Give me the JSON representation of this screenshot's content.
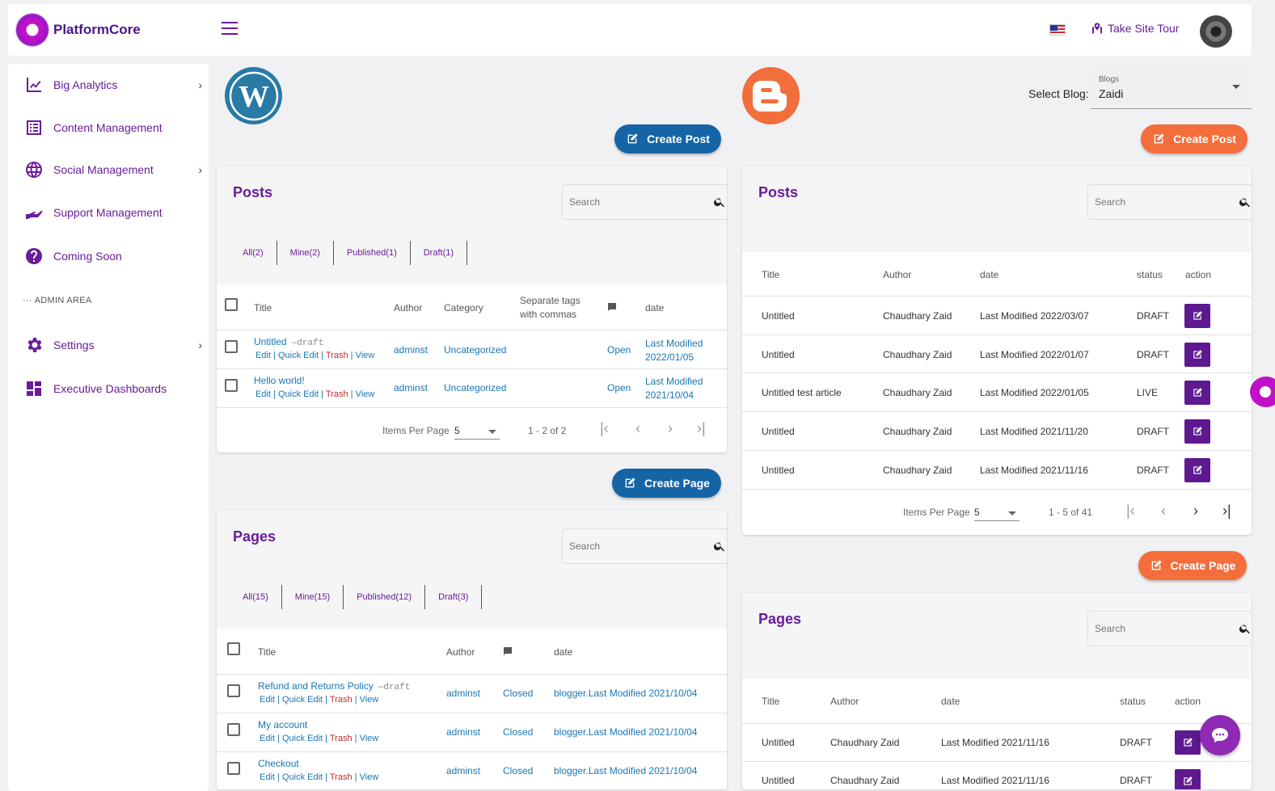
{
  "app": {
    "name": "PlatformCore"
  },
  "header": {
    "tour_label": "Take Site Tour",
    "flag_icon": "us-flag-icon"
  },
  "sidebar": {
    "items": [
      {
        "label": "Big Analytics",
        "icon": "chart-line-icon",
        "has_children": true
      },
      {
        "label": "Content Management",
        "icon": "list-icon",
        "has_children": false
      },
      {
        "label": "Social Management",
        "icon": "globe-icon",
        "has_children": true
      },
      {
        "label": "Support Management",
        "icon": "hand-icon",
        "has_children": false
      },
      {
        "label": "Coming Soon",
        "icon": "help-circle-icon",
        "has_children": false
      }
    ],
    "section_label": "ADMIN AREA",
    "admin_items": [
      {
        "label": "Settings",
        "icon": "gear-icon",
        "has_children": true
      },
      {
        "label": "Executive Dashboards",
        "icon": "dashboard-icon",
        "has_children": false
      }
    ]
  },
  "wordpress": {
    "create_post_label": "Create Post",
    "create_page_label": "Create Page",
    "posts": {
      "title": "Posts",
      "search_placeholder": "Search",
      "tabs": [
        "All(2)",
        "Mine(2)",
        "Published(1)",
        "Draft(1)"
      ],
      "columns": {
        "title": "Title",
        "author": "Author",
        "category": "Category",
        "tags": "Separate tags with commas",
        "date": "date"
      },
      "rows": [
        {
          "title": "Untitled",
          "draft": "—draft",
          "author": "adminst",
          "category": "Uncategorized",
          "comments": "Open",
          "date1": "Last Modified",
          "date2": "2022/01/05"
        },
        {
          "title": "Hello world!",
          "draft": "",
          "author": "adminst",
          "category": "Uncategorized",
          "comments": "Open",
          "date1": "Last Modified",
          "date2": "2021/10/04"
        }
      ],
      "row_actions": {
        "edit": "Edit",
        "quick_edit": "Quick Edit",
        "trash": "Trash",
        "view": "View"
      },
      "pager": {
        "items_per_page_label": "Items Per Page",
        "items_per_page": "5",
        "range": "1 - 2 of 2"
      }
    },
    "pages": {
      "title": "Pages",
      "search_placeholder": "Search",
      "tabs": [
        "All(15)",
        "Mine(15)",
        "Published(12)",
        "Draft(3)"
      ],
      "columns": {
        "title": "Title",
        "author": "Author",
        "date": "date"
      },
      "rows": [
        {
          "title": "Refund and Returns Policy",
          "draft": "—draft",
          "author": "adminst",
          "comments": "Closed",
          "date": "blogger.Last Modified 2021/10/04"
        },
        {
          "title": "My account",
          "draft": "",
          "author": "adminst",
          "comments": "Closed",
          "date": "blogger.Last Modified 2021/10/04"
        },
        {
          "title": "Checkout",
          "draft": "",
          "author": "adminst",
          "comments": "Closed",
          "date": "blogger.Last Modified 2021/10/04"
        }
      ]
    }
  },
  "blogger": {
    "select_blog_label": "Select Blog:",
    "select_blog_field_label": "Blogs",
    "select_blog_value": "Zaidi",
    "create_post_label": "Create Post",
    "create_page_label": "Create Page",
    "posts": {
      "title": "Posts",
      "search_placeholder": "Search",
      "columns": {
        "title": "Title",
        "author": "Author",
        "date": "date",
        "status": "status",
        "action": "action"
      },
      "rows": [
        {
          "title": "Untitled",
          "author": "Chaudhary Zaid",
          "date": "Last Modified 2022/03/07",
          "status": "DRAFT"
        },
        {
          "title": "Untitled",
          "author": "Chaudhary Zaid",
          "date": "Last Modified 2022/01/07",
          "status": "DRAFT"
        },
        {
          "title": "Untitled test article",
          "author": "Chaudhary Zaid",
          "date": "Last Modified 2022/01/05",
          "status": "LIVE"
        },
        {
          "title": "Untitled",
          "author": "Chaudhary Zaid",
          "date": "Last Modified 2021/11/20",
          "status": "DRAFT"
        },
        {
          "title": "Untitled",
          "author": "Chaudhary Zaid",
          "date": "Last Modified 2021/11/16",
          "status": "DRAFT"
        }
      ],
      "pager": {
        "items_per_page_label": "Items Per Page",
        "items_per_page": "5",
        "range": "1 - 5 of 41"
      }
    },
    "pages": {
      "title": "Pages",
      "search_placeholder": "Search",
      "columns": {
        "title": "Title",
        "author": "Author",
        "date": "date",
        "status": "status",
        "action": "action"
      },
      "rows": [
        {
          "title": "Untitled",
          "author": "Chaudhary Zaid",
          "date": "Last Modified 2021/11/16",
          "status": "DRAFT"
        },
        {
          "title": "Untitled",
          "author": "Chaudhary Zaid",
          "date": "Last Modified 2021/11/16",
          "status": "DRAFT"
        }
      ]
    }
  },
  "colors": {
    "brand_purple": "#6a1b9a",
    "wordpress_blue": "#1565a6",
    "blogger_orange": "#f46e3c",
    "edit_button": "#5e1890"
  }
}
